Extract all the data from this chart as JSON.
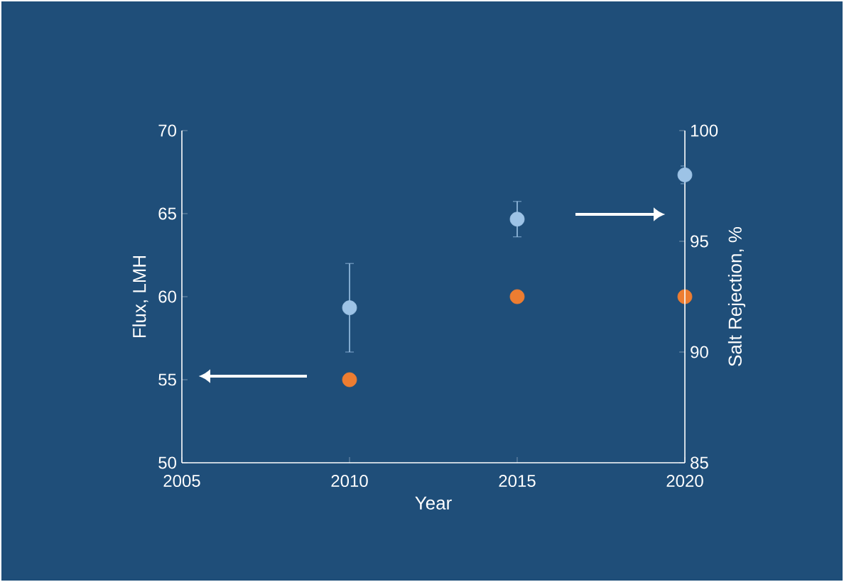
{
  "chart_data": {
    "type": "scatter",
    "xlabel": "Year",
    "ylabel": "Flux, LMH",
    "y2label": "Salt Rejection, %",
    "x": [
      2010,
      2015,
      2020
    ],
    "series": [
      {
        "color": "#ed7d31",
        "values": [
          55,
          60,
          60
        ]
      },
      {
        "color": "#9dc3e6",
        "values": [
          92,
          96,
          98
        ],
        "axis": "y2",
        "errors": [
          2,
          0.8,
          0.4
        ]
      }
    ],
    "xlim": [
      2005,
      2020
    ],
    "xticks": [
      2005,
      2010,
      2015,
      2020
    ],
    "ylim": [
      50,
      70
    ],
    "yticks": [
      50,
      55,
      60,
      65,
      70
    ],
    "y2lim": [
      85,
      100
    ],
    "y2ticks": [
      85,
      90,
      95,
      100
    ],
    "marker": "circle"
  }
}
